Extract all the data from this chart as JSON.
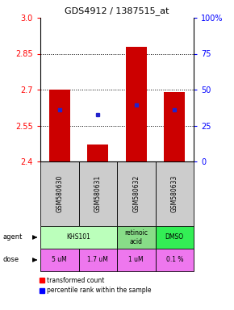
{
  "title": "GDS4912 / 1387515_at",
  "samples": [
    "GSM580630",
    "GSM580631",
    "GSM580632",
    "GSM580633"
  ],
  "bar_bottoms": [
    2.4,
    2.4,
    2.4,
    2.4
  ],
  "bar_tops": [
    2.7,
    2.47,
    2.88,
    2.69
  ],
  "percentile_values": [
    2.615,
    2.595,
    2.635,
    2.615
  ],
  "ylim": [
    2.4,
    3.0
  ],
  "yticks_left": [
    2.4,
    2.55,
    2.7,
    2.85,
    3.0
  ],
  "yticks_right_labels": [
    "0",
    "25",
    "50",
    "75",
    "100%"
  ],
  "yticks_right_vals": [
    0,
    25,
    50,
    75,
    100
  ],
  "bar_color": "#cc0000",
  "percentile_color": "#2222cc",
  "agent_info": [
    {
      "start": 0,
      "end": 1,
      "label": "KHS101",
      "color": "#bbffbb"
    },
    {
      "start": 2,
      "end": 2,
      "label": "retinoic\nacid",
      "color": "#88dd88"
    },
    {
      "start": 3,
      "end": 3,
      "label": "DMSO",
      "color": "#33ee55"
    }
  ],
  "dose_labels": [
    "5 uM",
    "1.7 uM",
    "1 uM",
    "0.1 %"
  ],
  "dose_color": "#ee77ee",
  "sample_bg_color": "#cccccc",
  "legend_red": "transformed count",
  "legend_blue": "percentile rank within the sample",
  "label_agent": "agent",
  "label_dose": "dose"
}
